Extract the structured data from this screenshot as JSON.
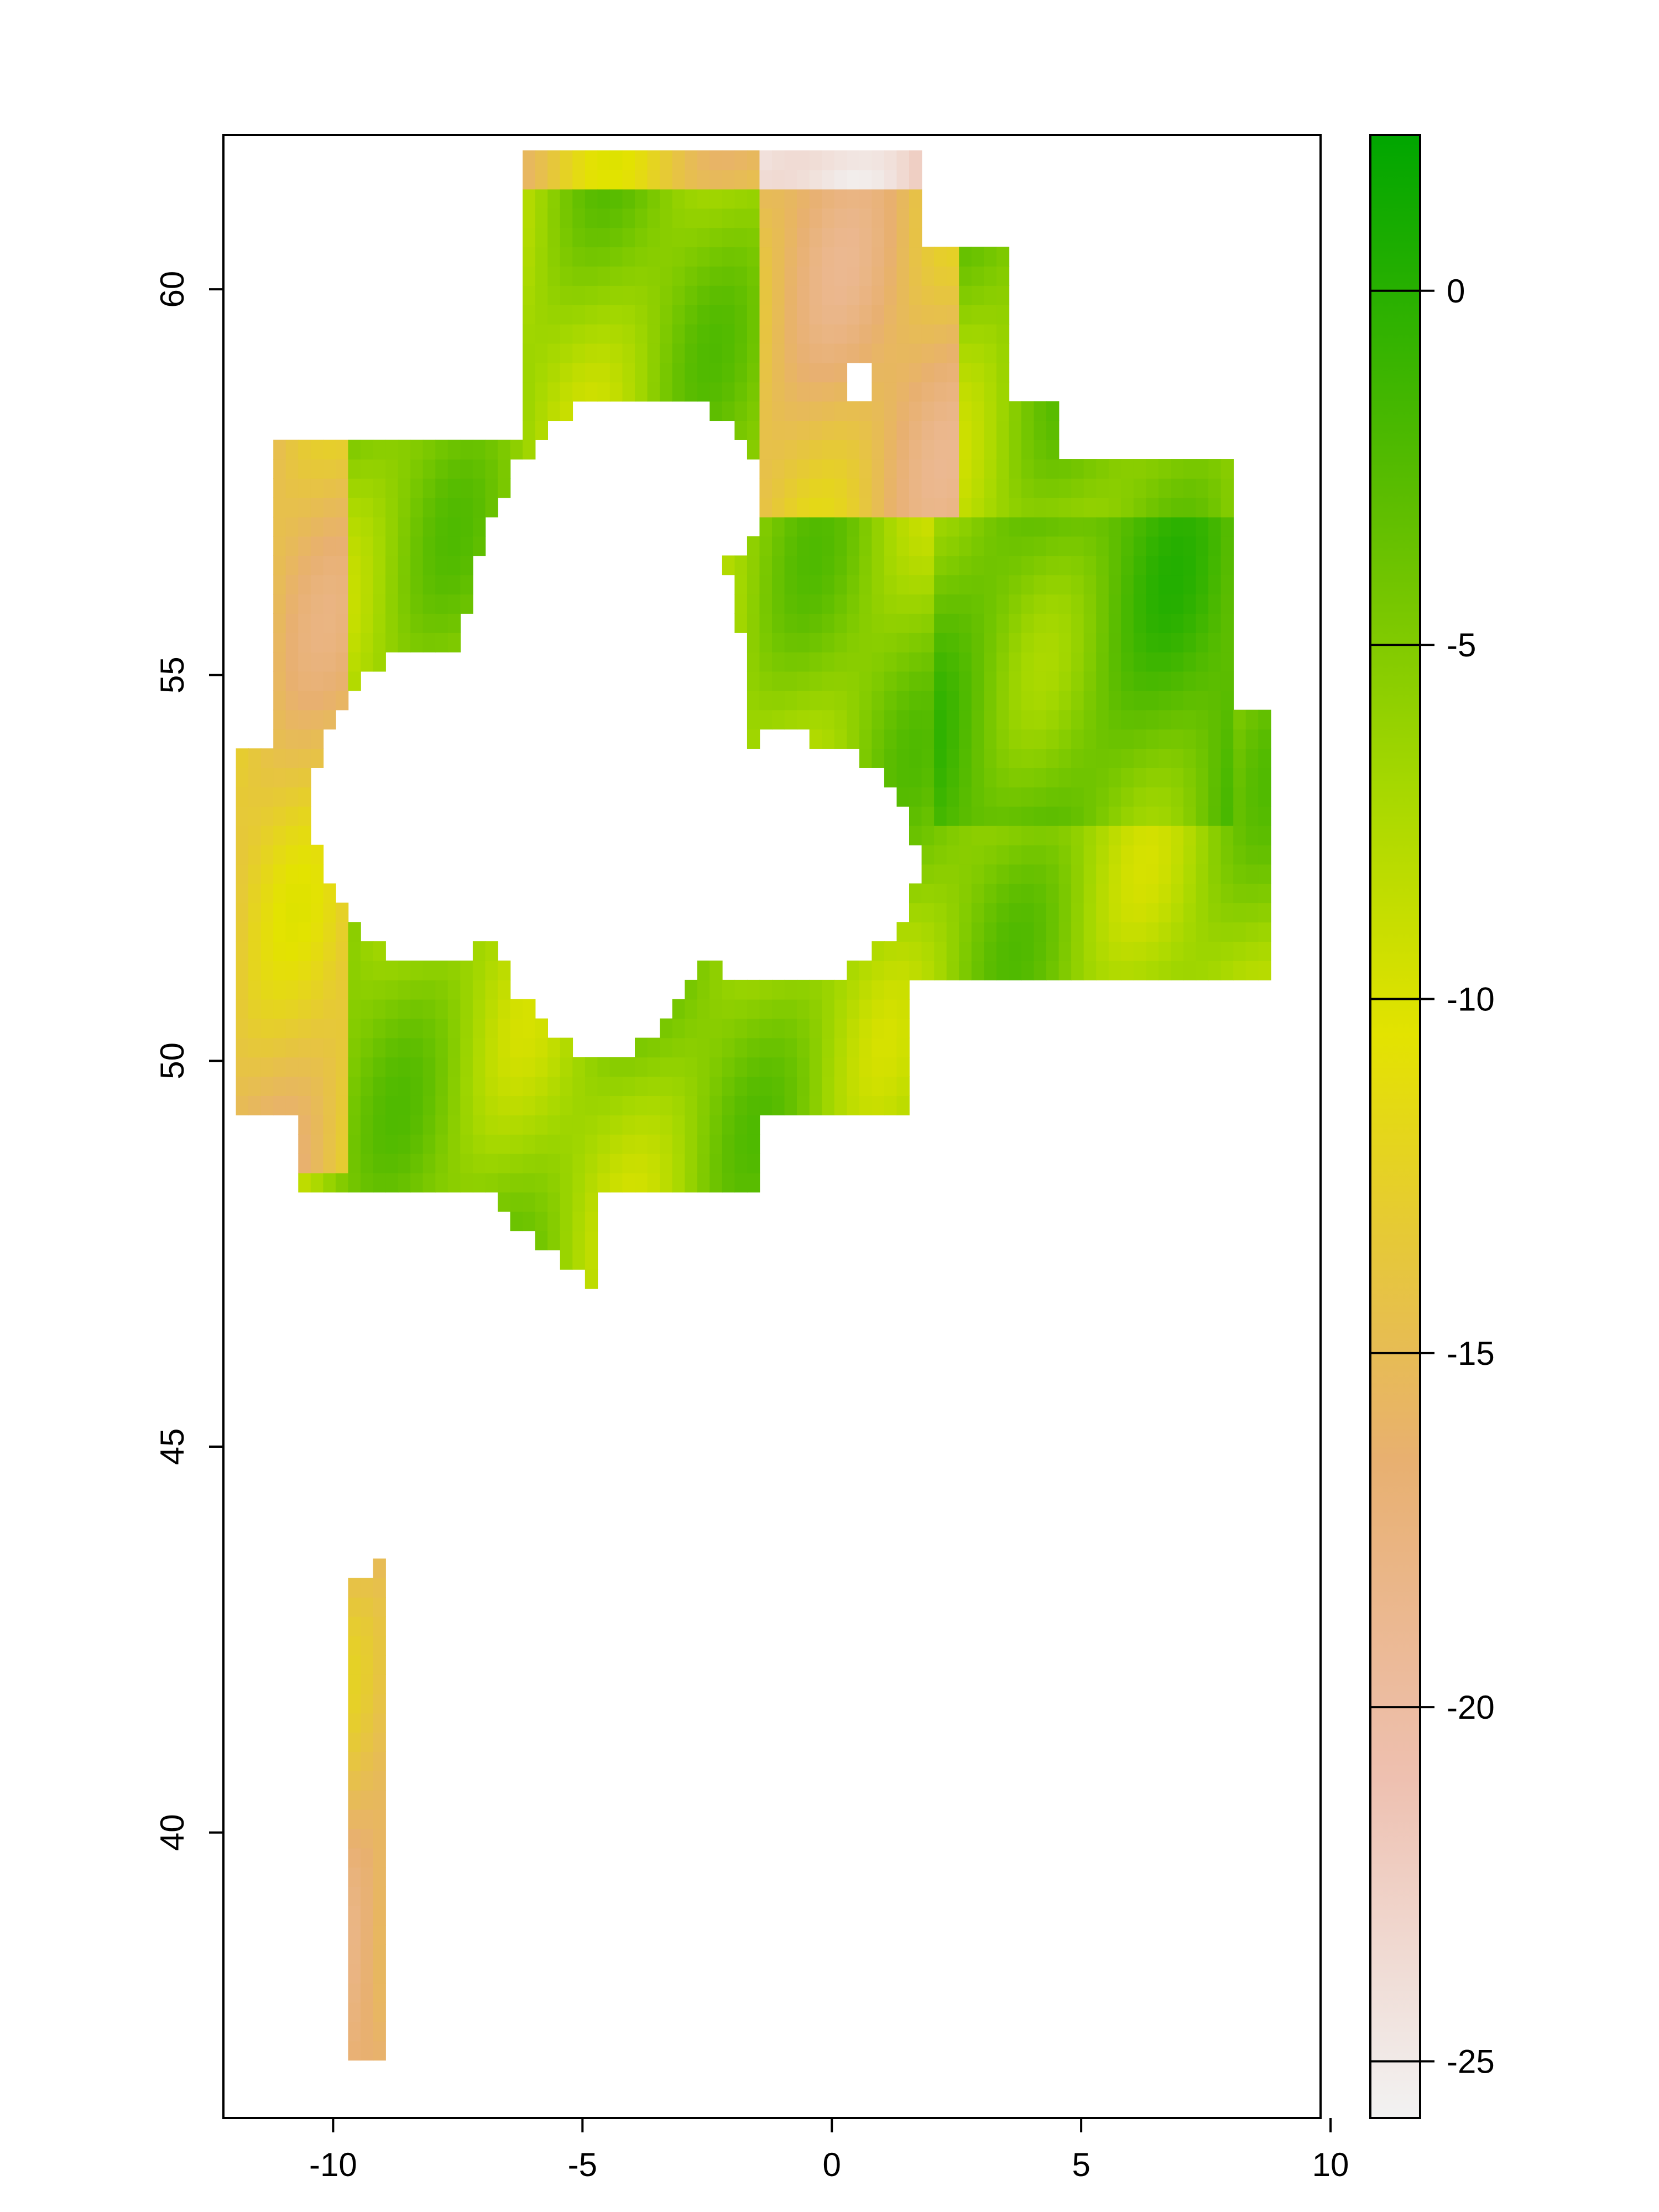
{
  "map": {
    "type": "raster",
    "x_axis": {
      "range": [
        -12.2,
        9.8
      ],
      "ticks": [
        -10,
        -5,
        0,
        5,
        10
      ],
      "tick_labels": [
        "-10",
        "-5",
        "0",
        "5",
        "10"
      ]
    },
    "y_axis": {
      "range": [
        36.3,
        62.0
      ],
      "ticks": [
        40,
        45,
        50,
        55,
        60
      ],
      "tick_labels": [
        "40",
        "45",
        "50",
        "55",
        "60"
      ]
    },
    "legend": {
      "placement": "right",
      "range": [
        -25.8,
        2.2
      ],
      "ticks": [
        0,
        -5,
        -10,
        -15,
        -20,
        -25
      ],
      "tick_labels": [
        "0",
        "-5",
        "-10",
        "-15",
        "-20",
        "-25"
      ],
      "color_stops": [
        {
          "value": -25.8,
          "color": "#f2f2f2"
        },
        {
          "value": -21.0,
          "color": "#eec0b0"
        },
        {
          "value": -16.5,
          "color": "#e8b070"
        },
        {
          "value": -13.0,
          "color": "#e6cc30"
        },
        {
          "value": -10.5,
          "color": "#e3e300"
        },
        {
          "value": -7.0,
          "color": "#a6d800"
        },
        {
          "value": -3.0,
          "color": "#5dbd00"
        },
        {
          "value": 2.2,
          "color": "#00a600"
        }
      ]
    },
    "colors": {
      "axis": "#000000",
      "background": "#ffffff"
    }
  }
}
